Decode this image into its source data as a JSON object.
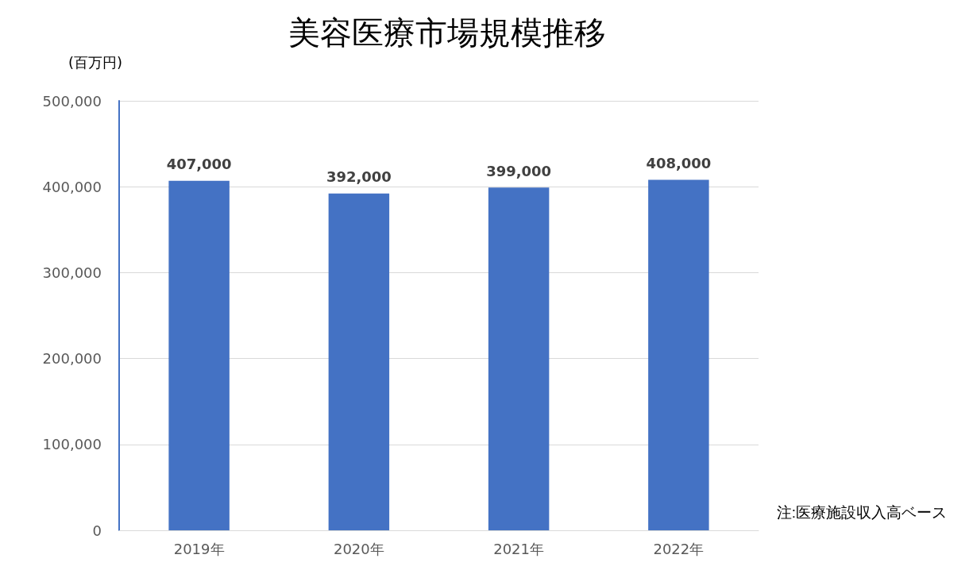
{
  "chart_data": {
    "type": "bar",
    "title": "美容医療市場規模推移",
    "ylabel": "(百万円)",
    "annotations": [
      "注:医療施設収入高ベース"
    ],
    "categories": [
      "2019年",
      "2020年",
      "2021年",
      "2022年"
    ],
    "values": [
      407000,
      392000,
      399000,
      408000
    ],
    "color": "#4472c4",
    "ylim": [
      0,
      500000
    ],
    "yticks": [
      {
        "value": 0,
        "label": "0"
      },
      {
        "value": 100000,
        "label": "100,000"
      },
      {
        "value": 200000,
        "label": "200,000"
      },
      {
        "value": 300000,
        "label": "300,000"
      },
      {
        "value": 400000,
        "label": "400,000"
      },
      {
        "value": 500000,
        "label": "500,000"
      }
    ],
    "value_labels": [
      "407,000",
      "392,000",
      "399,000",
      "408,000"
    ],
    "grid": "y"
  }
}
